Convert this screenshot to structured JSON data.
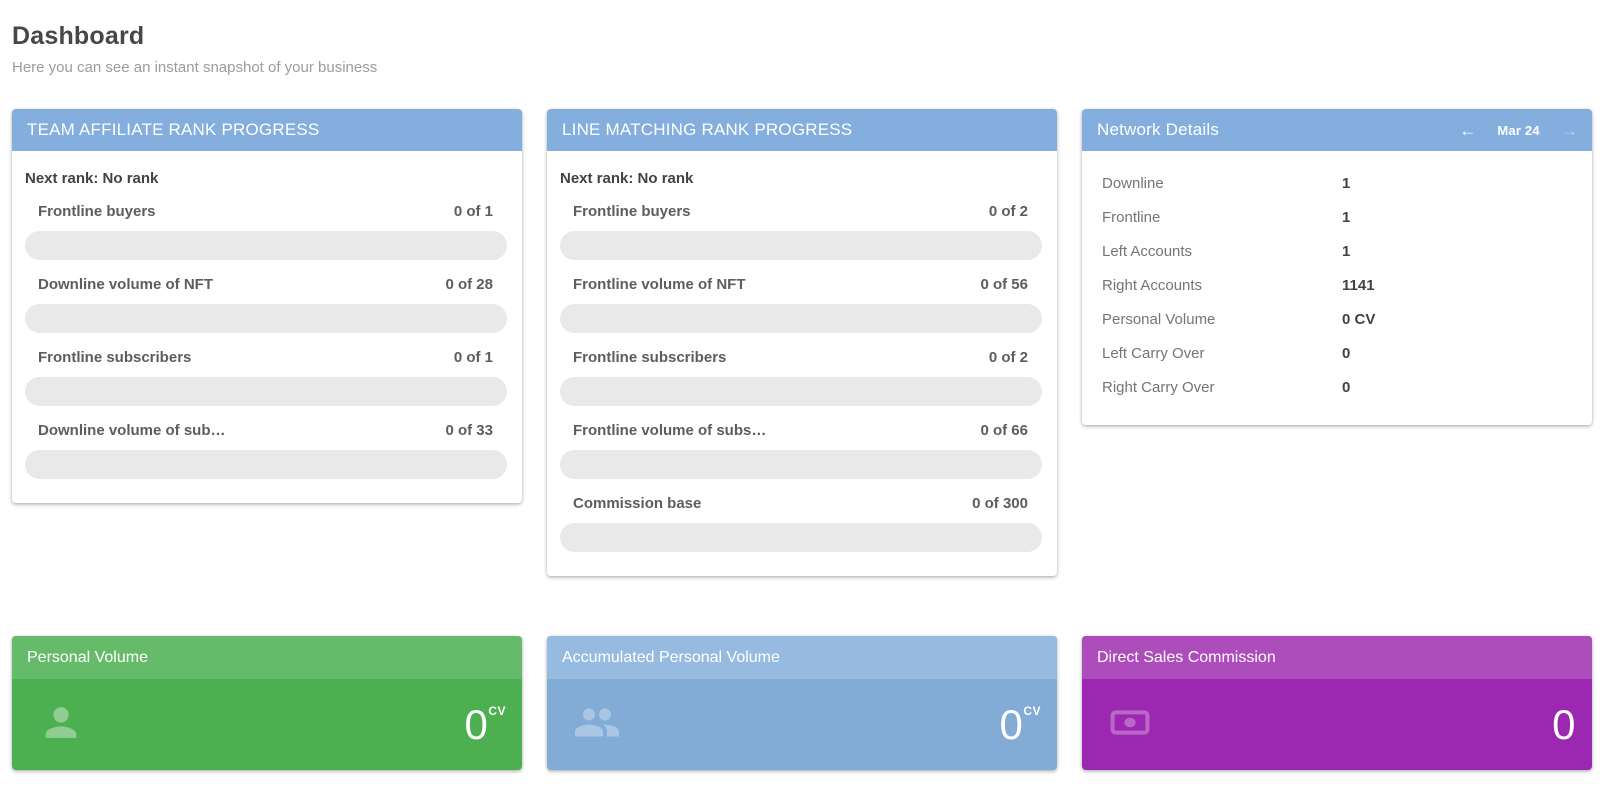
{
  "page": {
    "title": "Dashboard",
    "subtitle": "Here you can see an instant snapshot of your business"
  },
  "colors": {
    "card_header_blue": "#84aedd",
    "progress_track": "#e9e9e9",
    "green_header": "#66bb6a",
    "green_body": "#4caf50",
    "blue_header": "#97bbe0",
    "blue_body": "#82abd6",
    "purple_header": "#ad4cbb",
    "purple_body": "#9c27b0"
  },
  "team_affiliate": {
    "title": "TEAM AFFILIATE RANK PROGRESS",
    "next_rank": "Next rank: No rank",
    "items": [
      {
        "label": "Frontline buyers",
        "value": "0 of 1",
        "progress": 0
      },
      {
        "label": "Downline volume of NFT",
        "value": "0 of 28",
        "progress": 0
      },
      {
        "label": "Frontline subscribers",
        "value": "0 of 1",
        "progress": 0
      },
      {
        "label": "Downline volume of sub…",
        "value": "0 of 33",
        "progress": 0
      }
    ]
  },
  "line_matching": {
    "title": "LINE MATCHING RANK PROGRESS",
    "next_rank": "Next rank: No rank",
    "items": [
      {
        "label": "Frontline buyers",
        "value": "0 of 2",
        "progress": 0
      },
      {
        "label": "Frontline volume of NFT",
        "value": "0 of 56",
        "progress": 0
      },
      {
        "label": "Frontline subscribers",
        "value": "0 of 2",
        "progress": 0
      },
      {
        "label": "Frontline volume of subs…",
        "value": "0 of 66",
        "progress": 0
      },
      {
        "label": "Commission base",
        "value": "0 of 300",
        "progress": 0
      }
    ]
  },
  "network_details": {
    "title": "Network Details",
    "period": "Mar 24",
    "prev_icon": "←",
    "next_icon": "→",
    "rows": [
      {
        "label": "Downline",
        "value": "1"
      },
      {
        "label": "Frontline",
        "value": "1"
      },
      {
        "label": "Left Accounts",
        "value": "1"
      },
      {
        "label": "Right Accounts",
        "value": "1141"
      },
      {
        "label": "Personal Volume",
        "value": "0 CV"
      },
      {
        "label": "Left Carry Over",
        "value": "0"
      },
      {
        "label": "Right Carry Over",
        "value": "0"
      }
    ]
  },
  "stats": {
    "personal_volume": {
      "title": "Personal Volume",
      "value": "0",
      "unit": "CV",
      "icon": "person-icon"
    },
    "accumulated_personal_volume": {
      "title": "Accumulated Personal Volume",
      "value": "0",
      "unit": "CV",
      "icon": "people-icon"
    },
    "direct_sales_commission": {
      "title": "Direct Sales Commission",
      "value": "0",
      "icon": "money-icon"
    }
  }
}
